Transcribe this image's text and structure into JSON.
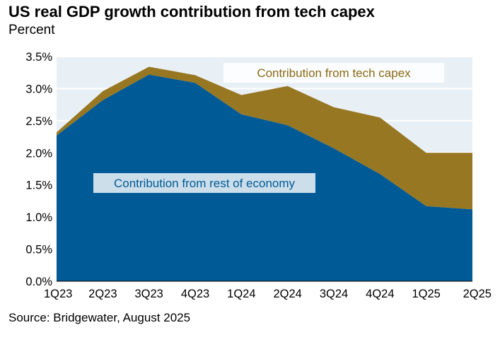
{
  "title": "US real GDP growth contribution from tech capex",
  "subtitle": "Percent",
  "source": "Source: Bridgewater, August 2025",
  "colors": {
    "rest_of_economy": "#005a96",
    "tech_capex": "#977722",
    "plot_bg": "#e9f0f5",
    "gridline": "#ffffff"
  },
  "chart_data": {
    "type": "area",
    "stacked": true,
    "categories": [
      "1Q23",
      "2Q23",
      "3Q23",
      "4Q23",
      "1Q24",
      "2Q24",
      "3Q24",
      "4Q24",
      "1Q25",
      "2Q25"
    ],
    "series": [
      {
        "name": "Contribution from rest of economy",
        "values": [
          2.27,
          2.82,
          3.22,
          3.09,
          2.6,
          2.43,
          2.07,
          1.67,
          1.17,
          1.12
        ]
      },
      {
        "name": "Contribution from tech capex",
        "values": [
          0.05,
          0.14,
          0.12,
          0.12,
          0.3,
          0.61,
          0.64,
          0.88,
          0.83,
          0.88
        ]
      }
    ],
    "yticks": [
      "0.0%",
      "0.5%",
      "1.0%",
      "1.5%",
      "2.0%",
      "2.5%",
      "3.0%",
      "3.5%"
    ],
    "ylim": [
      0,
      3.5
    ],
    "grid": true,
    "legend": "inline labels"
  }
}
